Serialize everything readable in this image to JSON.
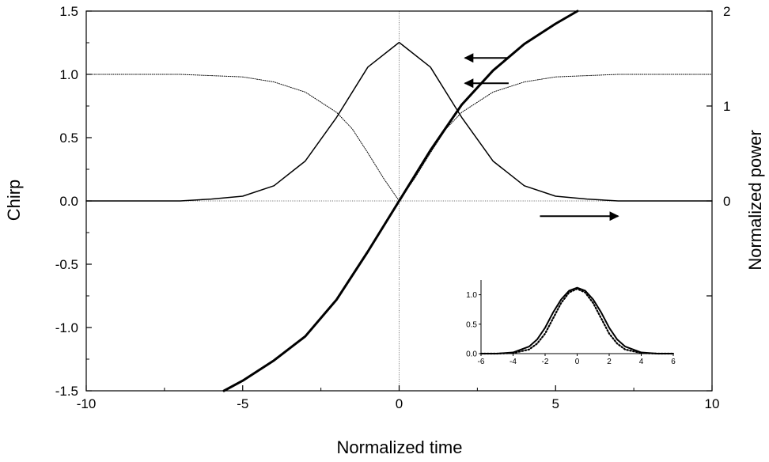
{
  "chart_data": [
    {
      "type": "line",
      "title": "",
      "xlabel": "Normalized time",
      "ylabel": "Chirp",
      "y2label": "Normalized power",
      "xlim": [
        -10,
        10
      ],
      "ylim": [
        -1.5,
        1.5
      ],
      "y2lim": [
        -2,
        2
      ],
      "xticks": [
        -10,
        -5,
        0,
        5,
        10
      ],
      "yticks": [
        -1.5,
        -1.0,
        -0.5,
        0.0,
        0.5,
        1.0,
        1.5
      ],
      "yticklabels": [
        "-1.5",
        "-1.0",
        "-0.5",
        "0.0",
        "0.5",
        "1.0",
        "1.5"
      ],
      "y2ticks": [
        0,
        1,
        2
      ],
      "y2ticklabels": [
        "0",
        "1",
        "2"
      ],
      "grid": false,
      "reference_lines": [
        {
          "axis": "x",
          "value": 0
        },
        {
          "axis": "y",
          "value": 0
        }
      ],
      "series": [
        {
          "style": "thick-solid",
          "axis": "left",
          "x": [
            -5.6,
            -5,
            -4,
            -3,
            -2,
            -1,
            0,
            1,
            2,
            3,
            4,
            5,
            5.7
          ],
          "y": [
            -1.5,
            -1.42,
            -1.26,
            -1.07,
            -0.78,
            -0.4,
            0.0,
            0.4,
            0.76,
            1.03,
            1.24,
            1.4,
            1.5
          ]
        },
        {
          "style": "thin-solid",
          "axis": "right",
          "x": [
            -10,
            -7,
            -6,
            -5,
            -4,
            -3,
            -2,
            -1,
            0,
            1,
            2,
            3,
            4,
            5,
            6,
            7,
            10
          ],
          "y": [
            0.0,
            0.0,
            0.02,
            0.05,
            0.16,
            0.42,
            0.88,
            1.41,
            1.67,
            1.41,
            0.88,
            0.42,
            0.16,
            0.05,
            0.02,
            0.0,
            0.0
          ]
        },
        {
          "style": "dotted",
          "axis": "left",
          "x": [
            -10,
            -7,
            -6,
            -5,
            -4,
            -3,
            -2,
            -1.5,
            -1,
            -0.5,
            0,
            0.5,
            1,
            1.5,
            2,
            3,
            4,
            5,
            6,
            7,
            10
          ],
          "y": [
            1.0,
            1.0,
            0.99,
            0.98,
            0.94,
            0.86,
            0.7,
            0.57,
            0.38,
            0.18,
            0.0,
            0.18,
            0.38,
            0.57,
            0.7,
            0.86,
            0.94,
            0.98,
            0.99,
            1.0,
            1.0
          ]
        }
      ],
      "annotations": [
        {
          "type": "arrow",
          "direction": "left",
          "points_to": "Chirp",
          "x_from": 3.5,
          "x_to": 2.1,
          "y": 1.13
        },
        {
          "type": "arrow",
          "direction": "left",
          "points_to": "Chirp",
          "x_from": 3.5,
          "x_to": 2.1,
          "y": 0.93
        },
        {
          "type": "arrow",
          "direction": "right",
          "points_to": "Normalized power",
          "x_from": 4.5,
          "x_to": 7.0,
          "y": -0.12
        }
      ]
    },
    {
      "type": "line",
      "position": "inset-bottom-right",
      "title": "",
      "xlabel": "",
      "ylabel": "",
      "xlim": [
        -6,
        6
      ],
      "ylim": [
        0,
        1.25
      ],
      "xticks": [
        -6,
        -4,
        -2,
        0,
        2,
        4,
        6
      ],
      "xticklabels": [
        "-6",
        "-4",
        "-2",
        "0",
        "2",
        "4",
        "6"
      ],
      "yticks": [
        0.0,
        0.5,
        1.0
      ],
      "yticklabels": [
        "0.0",
        "0.5",
        "1.0"
      ],
      "grid": false,
      "series": [
        {
          "style": "solid",
          "x": [
            -6,
            -5,
            -4,
            -3,
            -2.5,
            -2,
            -1.5,
            -1,
            -0.5,
            0,
            0.5,
            1,
            1.5,
            2,
            2.5,
            3,
            4,
            5,
            6
          ],
          "y": [
            0.0,
            0.0,
            0.02,
            0.12,
            0.24,
            0.44,
            0.7,
            0.92,
            1.07,
            1.12,
            1.07,
            0.92,
            0.7,
            0.44,
            0.24,
            0.12,
            0.02,
            0.0,
            0.0
          ]
        },
        {
          "style": "dotted",
          "x": [
            -6,
            -5,
            -4,
            -3,
            -2.5,
            -2,
            -1.5,
            -1,
            -0.5,
            0,
            0.5,
            1,
            1.5,
            2,
            2.5,
            3,
            4,
            5,
            6
          ],
          "y": [
            0.0,
            0.0,
            0.01,
            0.07,
            0.17,
            0.34,
            0.6,
            0.86,
            1.04,
            1.1,
            1.04,
            0.86,
            0.6,
            0.34,
            0.17,
            0.07,
            0.01,
            0.0,
            0.0
          ]
        }
      ]
    }
  ]
}
